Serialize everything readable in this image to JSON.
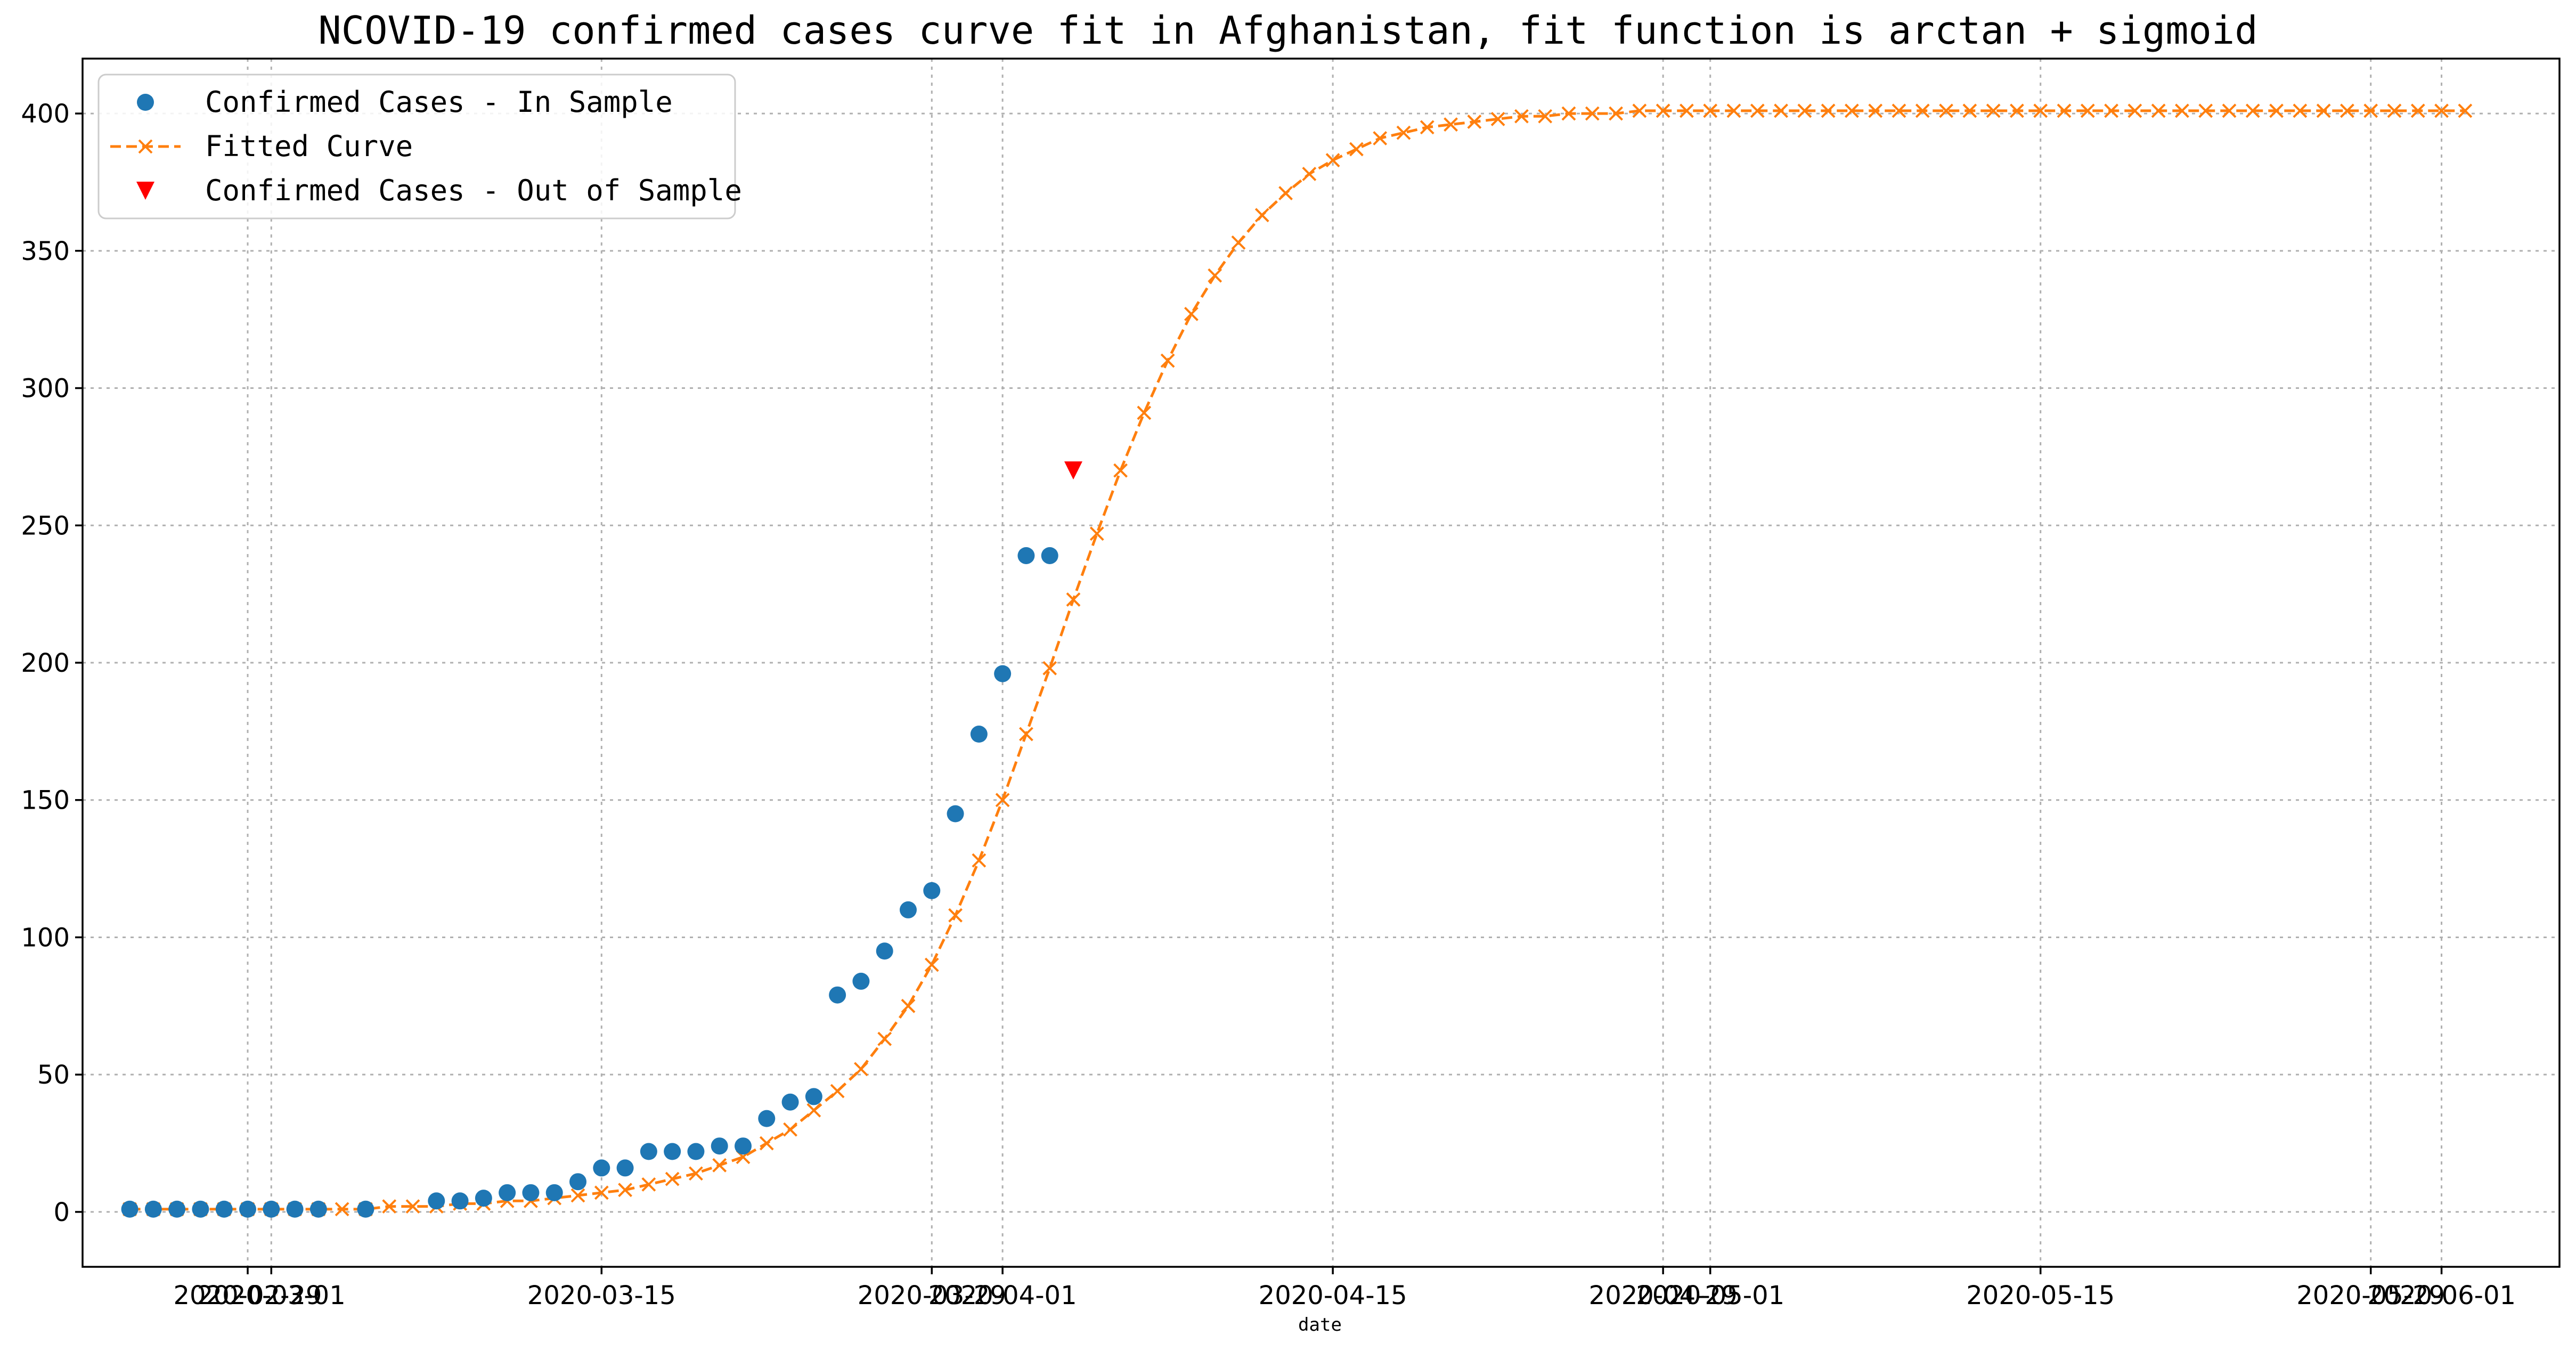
{
  "chart_data": {
    "type": "line",
    "title": "NCOVID-19 confirmed cases curve fit in Afghanistan, fit function is arctan + sigmoid",
    "xlabel": "date",
    "ylabel": "",
    "x_axis_type": "date",
    "xlim": [
      "2020-02-22",
      "2020-06-06"
    ],
    "ylim": [
      -20,
      420
    ],
    "x_ticks": [
      {
        "date": "2020-02-29",
        "label": "2020-02-29"
      },
      {
        "date": "2020-03-01",
        "label": "2020-03-01"
      },
      {
        "date": "2020-03-15",
        "label": "2020-03-15"
      },
      {
        "date": "2020-03-29",
        "label": "2020-03-29"
      },
      {
        "date": "2020-04-01",
        "label": "2020-04-01"
      },
      {
        "date": "2020-04-15",
        "label": "2020-04-15"
      },
      {
        "date": "2020-04-29",
        "label": "2020-04-29"
      },
      {
        "date": "2020-05-01",
        "label": "2020-05-01"
      },
      {
        "date": "2020-05-15",
        "label": "2020-05-15"
      },
      {
        "date": "2020-05-29",
        "label": "2020-05-29"
      },
      {
        "date": "2020-06-01",
        "label": "2020-06-01"
      }
    ],
    "y_ticks": [
      0,
      50,
      100,
      150,
      200,
      250,
      300,
      350,
      400
    ],
    "grid": true,
    "legend_position": "top-left",
    "series": [
      {
        "name": "Confirmed Cases - In Sample",
        "marker": "circle",
        "color": "#1f77b4",
        "points": [
          [
            "2020-02-24",
            1
          ],
          [
            "2020-02-25",
            1
          ],
          [
            "2020-02-26",
            1
          ],
          [
            "2020-02-27",
            1
          ],
          [
            "2020-02-28",
            1
          ],
          [
            "2020-02-29",
            1
          ],
          [
            "2020-03-01",
            1
          ],
          [
            "2020-03-02",
            1
          ],
          [
            "2020-03-03",
            1
          ],
          [
            "2020-03-05",
            1
          ],
          [
            "2020-03-08",
            4
          ],
          [
            "2020-03-09",
            4
          ],
          [
            "2020-03-10",
            5
          ],
          [
            "2020-03-11",
            7
          ],
          [
            "2020-03-12",
            7
          ],
          [
            "2020-03-13",
            7
          ],
          [
            "2020-03-14",
            11
          ],
          [
            "2020-03-15",
            16
          ],
          [
            "2020-03-16",
            16
          ],
          [
            "2020-03-17",
            22
          ],
          [
            "2020-03-18",
            22
          ],
          [
            "2020-03-19",
            22
          ],
          [
            "2020-03-20",
            24
          ],
          [
            "2020-03-21",
            24
          ],
          [
            "2020-03-22",
            34
          ],
          [
            "2020-03-23",
            40
          ],
          [
            "2020-03-24",
            42
          ],
          [
            "2020-03-25",
            79
          ],
          [
            "2020-03-26",
            84
          ],
          [
            "2020-03-27",
            95
          ],
          [
            "2020-03-28",
            110
          ],
          [
            "2020-03-29",
            117
          ],
          [
            "2020-03-30",
            145
          ],
          [
            "2020-03-31",
            174
          ],
          [
            "2020-04-01",
            196
          ],
          [
            "2020-04-02",
            239
          ],
          [
            "2020-04-03",
            239
          ]
        ]
      },
      {
        "name": "Fitted Curve",
        "marker": "x",
        "line_style": "dashed",
        "color": "#ff7f0e",
        "start_date": "2020-02-24",
        "step_days": 1,
        "values": [
          1,
          1,
          1,
          1,
          1,
          1,
          1,
          1,
          1,
          1,
          1,
          2,
          2,
          2,
          3,
          3,
          4,
          4,
          5,
          6,
          7,
          8,
          10,
          12,
          14,
          17,
          20,
          25,
          30,
          37,
          44,
          52,
          63,
          75,
          90,
          108,
          128,
          150,
          174,
          198,
          223,
          247,
          270,
          291,
          310,
          327,
          341,
          353,
          363,
          371,
          378,
          383,
          387,
          391,
          393,
          395,
          396,
          397,
          398,
          399,
          399,
          400,
          400,
          400,
          401,
          401,
          401,
          401,
          401,
          401,
          401,
          401,
          401,
          401,
          401,
          401,
          401,
          401,
          401,
          401,
          401,
          401,
          401,
          401,
          401,
          401,
          401,
          401,
          401,
          401,
          401,
          401,
          401,
          401,
          401,
          401,
          401,
          401,
          401,
          401
        ]
      },
      {
        "name": "Confirmed Cases - Out of Sample",
        "marker": "triangle-down",
        "color": "#ff0000",
        "points": [
          [
            "2020-04-04",
            270
          ]
        ]
      }
    ]
  }
}
